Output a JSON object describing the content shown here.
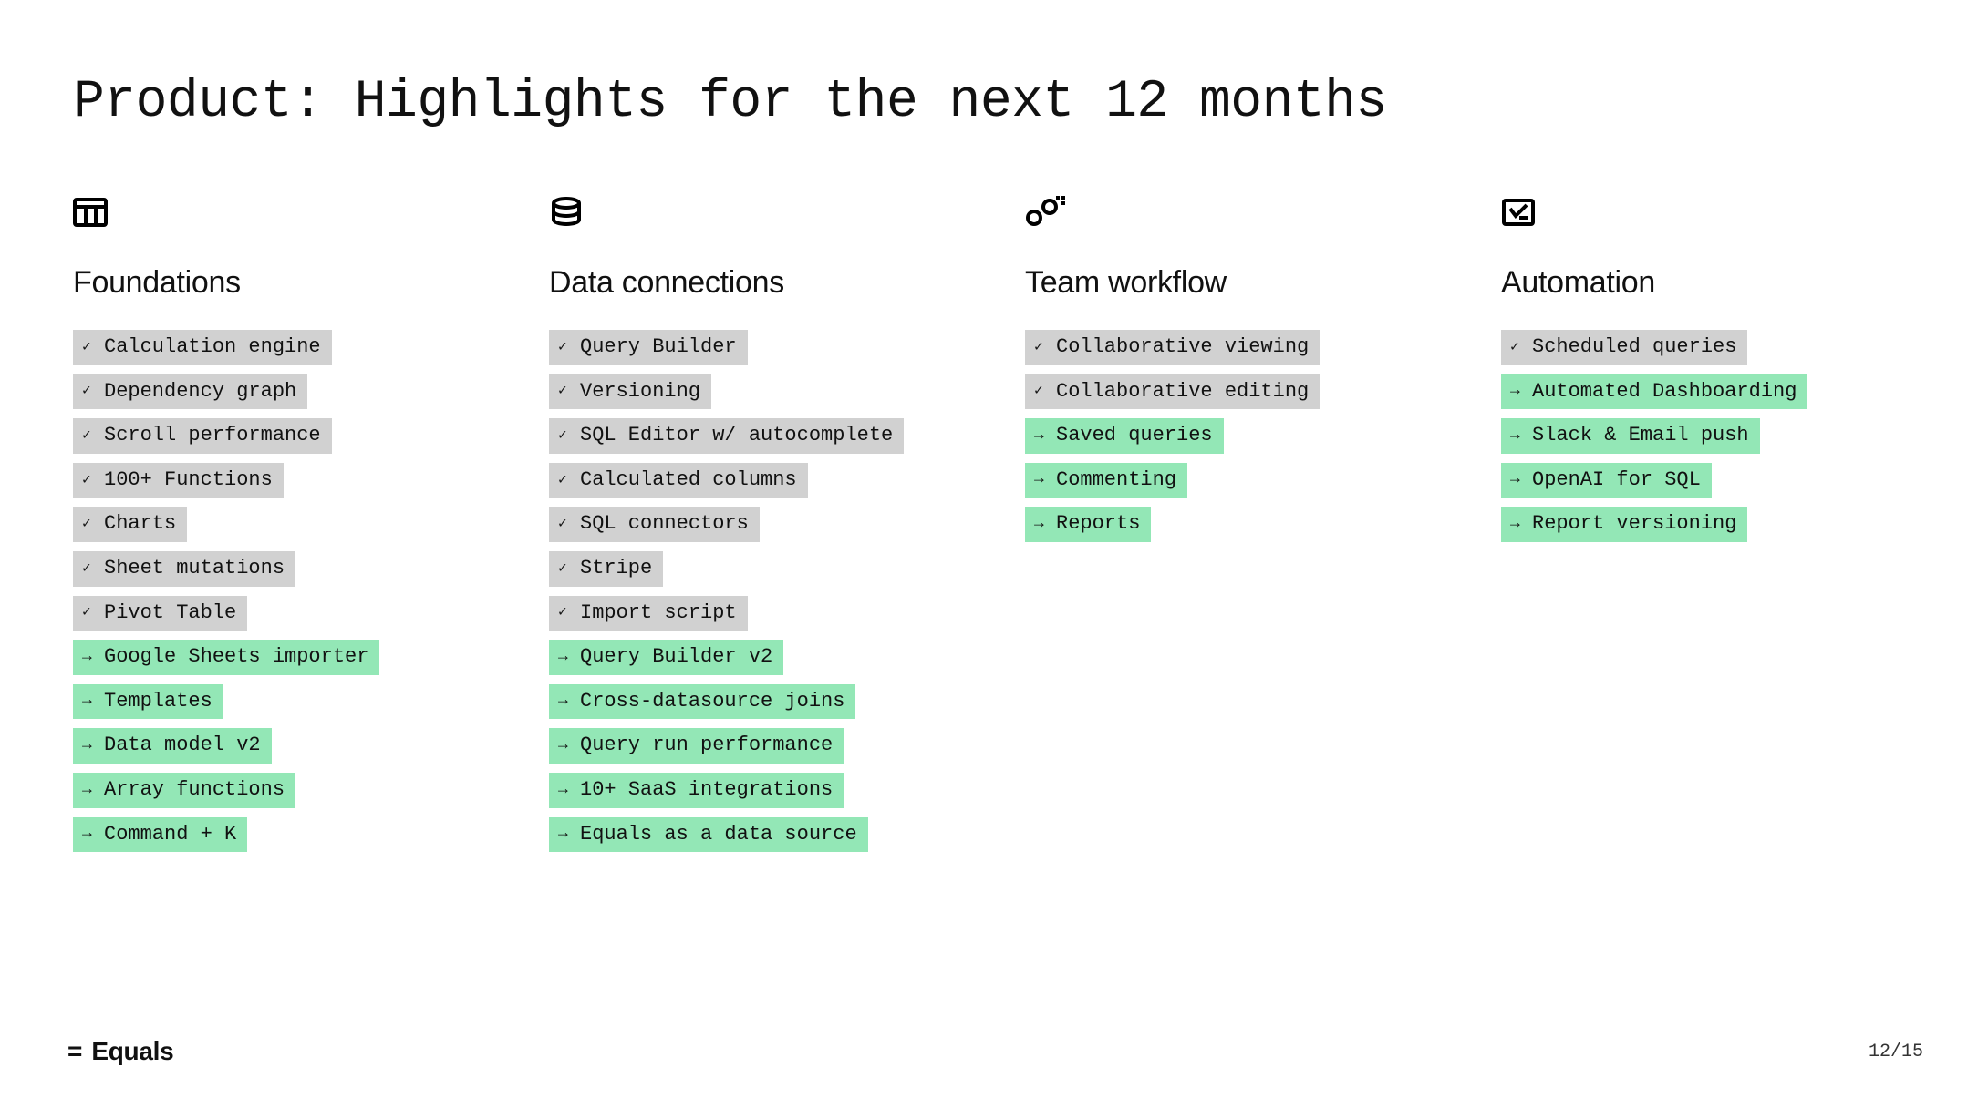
{
  "title": "Product: Highlights for the next 12 months",
  "colors": {
    "done_bg": "#d1d1d1",
    "upcoming_bg": "#93e7b6",
    "page_bg": "#ffffff",
    "text": "#111111"
  },
  "columns": [
    {
      "icon": "grid",
      "heading": "Foundations",
      "items": [
        {
          "status": "done",
          "label": "Calculation engine"
        },
        {
          "status": "done",
          "label": "Dependency graph"
        },
        {
          "status": "done",
          "label": "Scroll performance"
        },
        {
          "status": "done",
          "label": "100+ Functions"
        },
        {
          "status": "done",
          "label": "Charts"
        },
        {
          "status": "done",
          "label": "Sheet mutations"
        },
        {
          "status": "done",
          "label": "Pivot Table"
        },
        {
          "status": "upcoming",
          "label": "Google Sheets importer"
        },
        {
          "status": "upcoming",
          "label": "Templates"
        },
        {
          "status": "upcoming",
          "label": "Data model v2"
        },
        {
          "status": "upcoming",
          "label": "Array functions"
        },
        {
          "status": "upcoming",
          "label": "Command + K"
        }
      ]
    },
    {
      "icon": "database",
      "heading": "Data connections",
      "items": [
        {
          "status": "done",
          "label": "Query Builder"
        },
        {
          "status": "done",
          "label": "Versioning"
        },
        {
          "status": "done",
          "label": "SQL Editor w/ autocomplete"
        },
        {
          "status": "done",
          "label": "Calculated columns"
        },
        {
          "status": "done",
          "label": "SQL connectors"
        },
        {
          "status": "done",
          "label": "Stripe"
        },
        {
          "status": "done",
          "label": "Import script"
        },
        {
          "status": "upcoming",
          "label": "Query Builder v2"
        },
        {
          "status": "upcoming",
          "label": "Cross-datasource joins"
        },
        {
          "status": "upcoming",
          "label": "Query run performance"
        },
        {
          "status": "upcoming",
          "label": "10+ SaaS integrations"
        },
        {
          "status": "upcoming",
          "label": "Equals as a data source"
        }
      ]
    },
    {
      "icon": "team",
      "heading": "Team workflow",
      "items": [
        {
          "status": "done",
          "label": "Collaborative viewing"
        },
        {
          "status": "done",
          "label": "Collaborative editing"
        },
        {
          "status": "upcoming",
          "label": "Saved queries"
        },
        {
          "status": "upcoming",
          "label": "Commenting"
        },
        {
          "status": "upcoming",
          "label": "Reports"
        }
      ]
    },
    {
      "icon": "automation",
      "heading": "Automation",
      "items": [
        {
          "status": "done",
          "label": "Scheduled queries"
        },
        {
          "status": "upcoming",
          "label": "Automated Dashboarding"
        },
        {
          "status": "upcoming",
          "label": "Slack & Email push"
        },
        {
          "status": "upcoming",
          "label": "OpenAI for SQL"
        },
        {
          "status": "upcoming",
          "label": "Report versioning"
        }
      ]
    }
  ],
  "footer": {
    "brand": "Equals"
  },
  "page": {
    "current": 12,
    "total": 15
  },
  "icons": {
    "done_glyph": "✓",
    "upcoming_glyph": "→"
  }
}
